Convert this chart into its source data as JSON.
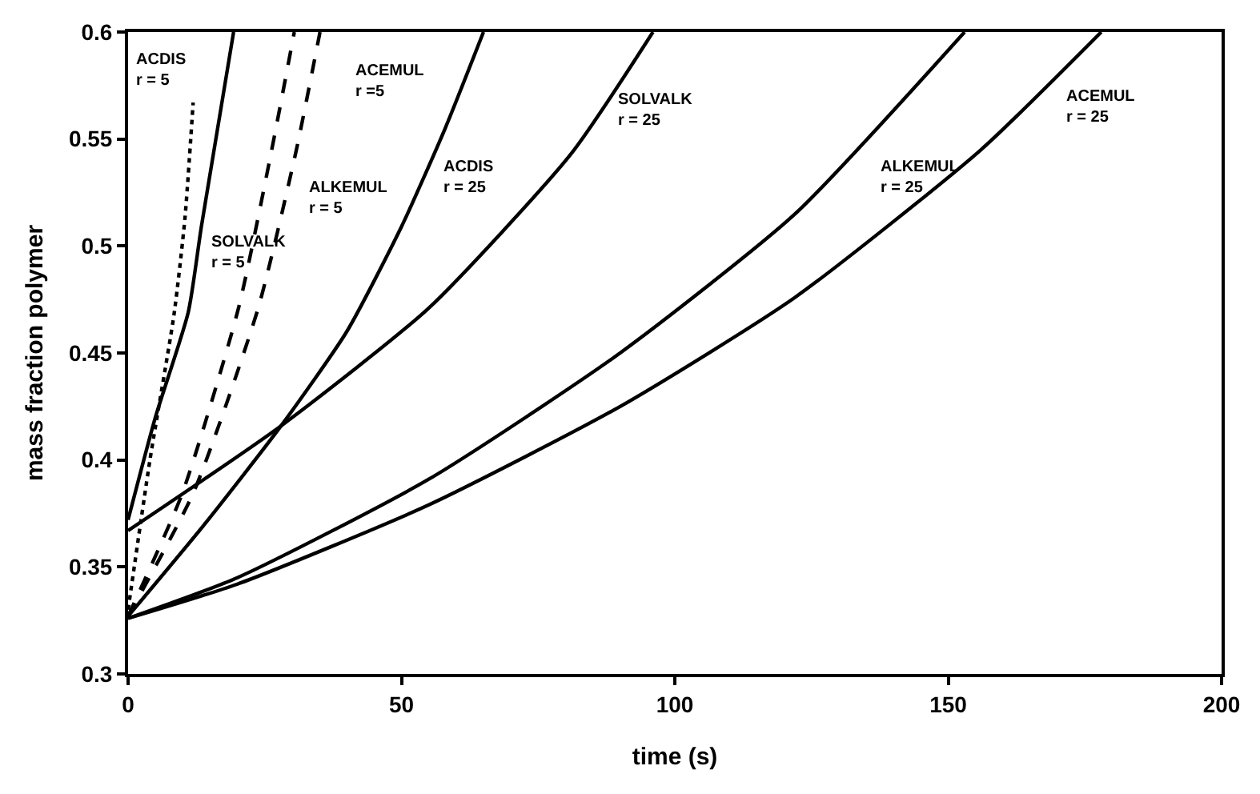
{
  "chart_data": {
    "type": "line",
    "xlabel": "time (s)",
    "ylabel": "mass fraction polymer",
    "xlim": [
      0,
      200
    ],
    "xticks": [
      0,
      50,
      100,
      150,
      200
    ],
    "ylim": [
      0.3,
      0.6
    ],
    "yticks": [
      0.3,
      0.35,
      0.4,
      0.45,
      0.5,
      0.55,
      0.6
    ],
    "marker": "none",
    "series": [
      {
        "color": "#000000",
        "line_style": "solid",
        "x": [
          0,
          5,
          11,
          13.4,
          19.3
        ],
        "values": [
          0.372,
          0.42,
          0.469,
          0.509,
          0.6
        ]
      },
      {
        "color": "#000000",
        "line_style": "dotted",
        "x": [
          0,
          4,
          8.4,
          10.4,
          11.9
        ],
        "values": [
          0.33,
          0.4,
          0.468,
          0.513,
          0.567
        ]
      },
      {
        "color": "#000000",
        "line_style": "dashed",
        "x": [
          0,
          10,
          20.2,
          26.2,
          30.4
        ],
        "values": [
          0.327,
          0.385,
          0.471,
          0.544,
          0.6
        ]
      },
      {
        "color": "#000000",
        "line_style": "dashed",
        "x": [
          0,
          12,
          23.8,
          30.7,
          35.1
        ],
        "values": [
          0.327,
          0.385,
          0.471,
          0.544,
          0.6
        ]
      },
      {
        "color": "#000000",
        "line_style": "solid",
        "x": [
          0,
          14,
          28,
          40,
          50,
          58,
          65
        ],
        "values": [
          0.327,
          0.37,
          0.416,
          0.46,
          0.509,
          0.555,
          0.6
        ]
      },
      {
        "color": "#000000",
        "line_style": "solid",
        "x": [
          0,
          28,
          55,
          81,
          96
        ],
        "values": [
          0.367,
          0.416,
          0.471,
          0.543,
          0.6
        ]
      },
      {
        "color": "#000000",
        "line_style": "solid",
        "x": [
          0,
          20,
          55,
          90,
          122,
          153
        ],
        "values": [
          0.326,
          0.345,
          0.391,
          0.45,
          0.515,
          0.6
        ]
      },
      {
        "color": "#000000",
        "line_style": "solid",
        "x": [
          0,
          20,
          55,
          90,
          122,
          156,
          178
        ],
        "values": [
          0.326,
          0.342,
          0.379,
          0.425,
          0.476,
          0.545,
          0.6
        ]
      }
    ],
    "annotations": [
      "ACDIS\nr = 5",
      "SOLVALK\nr = 5",
      "ALKEMUL\nr = 5",
      "ACEMUL\nr =5",
      "ACDIS\nr = 25",
      "SOLVALK\nr = 25",
      "ALKEMUL\nr = 25",
      "ACEMUL\nr = 25"
    ]
  }
}
